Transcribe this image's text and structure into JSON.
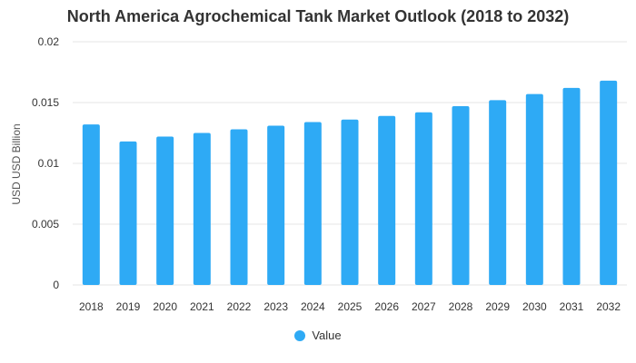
{
  "chart_data": {
    "type": "bar",
    "title": "North America Agrochemical Tank Market Outlook (2018 to 2032)",
    "xlabel": "",
    "ylabel": "USD USD Billion",
    "ylim": [
      0,
      0.02
    ],
    "yticks": [
      "0",
      "0.005",
      "0.01",
      "0.015",
      "0.02"
    ],
    "ytick_values": [
      0,
      0.005,
      0.01,
      0.015,
      0.02
    ],
    "grid": true,
    "legend_position": "bottom-center",
    "categories": [
      "2018",
      "2019",
      "2020",
      "2021",
      "2022",
      "2023",
      "2024",
      "2025",
      "2026",
      "2027",
      "2028",
      "2029",
      "2030",
      "2031",
      "2032"
    ],
    "series": [
      {
        "name": "Value",
        "color": "#2eaaf5",
        "values": [
          0.0132,
          0.0118,
          0.0122,
          0.0125,
          0.0128,
          0.0131,
          0.0134,
          0.0136,
          0.0139,
          0.0142,
          0.0147,
          0.0152,
          0.0157,
          0.0162,
          0.0168
        ]
      }
    ]
  }
}
